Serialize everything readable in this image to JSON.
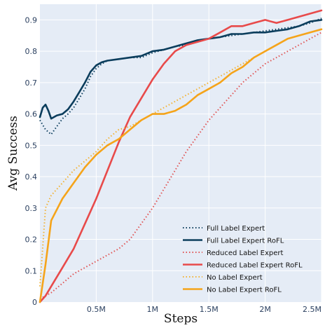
{
  "chart_data": {
    "type": "line",
    "xlabel": "Steps",
    "ylabel": "Avg Success",
    "xlim": [
      0,
      2500000
    ],
    "ylim": [
      0,
      0.95
    ],
    "grid": true,
    "legend_position": "bottom-right",
    "x_ticks": [
      {
        "value": 500000,
        "label": "0.5M"
      },
      {
        "value": 1000000,
        "label": "1M"
      },
      {
        "value": 1500000,
        "label": "1.5M"
      },
      {
        "value": 2000000,
        "label": "2M"
      },
      {
        "value": 2500000,
        "label": "2.5M"
      }
    ],
    "y_ticks": [
      {
        "value": 0,
        "label": "0"
      },
      {
        "value": 0.1,
        "label": "0.1"
      },
      {
        "value": 0.2,
        "label": "0.2"
      },
      {
        "value": 0.3,
        "label": "0.3"
      },
      {
        "value": 0.4,
        "label": "0.4"
      },
      {
        "value": 0.5,
        "label": "0.5"
      },
      {
        "value": 0.6,
        "label": "0.6"
      },
      {
        "value": 0.7,
        "label": "0.7"
      },
      {
        "value": 0.8,
        "label": "0.8"
      },
      {
        "value": 0.9,
        "label": "0.9"
      }
    ],
    "series": [
      {
        "name": "Full Label Expert",
        "color": "#0b3d5c",
        "dash": "dotted",
        "x": [
          0,
          50000,
          100000,
          150000,
          200000,
          250000,
          300000,
          350000,
          400000,
          450000,
          500000,
          550000,
          600000,
          700000,
          800000,
          900000,
          1000000,
          1100000,
          1200000,
          1300000,
          1400000,
          1500000,
          1600000,
          1700000,
          1800000,
          1900000,
          2000000,
          2100000,
          2200000,
          2300000,
          2400000,
          2500000
        ],
        "y": [
          0.58,
          0.55,
          0.535,
          0.56,
          0.585,
          0.6,
          0.62,
          0.65,
          0.68,
          0.72,
          0.745,
          0.76,
          0.77,
          0.775,
          0.78,
          0.78,
          0.795,
          0.805,
          0.815,
          0.82,
          0.83,
          0.84,
          0.845,
          0.85,
          0.855,
          0.86,
          0.865,
          0.87,
          0.875,
          0.88,
          0.89,
          0.905
        ]
      },
      {
        "name": "Full Label Expert RoFL",
        "color": "#0b3d5c",
        "dash": "solid",
        "x": [
          0,
          25000,
          50000,
          75000,
          100000,
          150000,
          200000,
          250000,
          300000,
          350000,
          400000,
          450000,
          500000,
          550000,
          600000,
          700000,
          800000,
          900000,
          1000000,
          1100000,
          1200000,
          1300000,
          1400000,
          1500000,
          1600000,
          1700000,
          1800000,
          1900000,
          2000000,
          2100000,
          2200000,
          2300000,
          2400000,
          2500000
        ],
        "y": [
          0.59,
          0.62,
          0.63,
          0.61,
          0.585,
          0.595,
          0.6,
          0.615,
          0.64,
          0.67,
          0.7,
          0.735,
          0.755,
          0.765,
          0.77,
          0.775,
          0.78,
          0.785,
          0.8,
          0.805,
          0.815,
          0.825,
          0.835,
          0.84,
          0.845,
          0.855,
          0.855,
          0.86,
          0.86,
          0.865,
          0.87,
          0.88,
          0.895,
          0.9
        ]
      },
      {
        "name": "Reduced Label Expert",
        "color": "#e05555",
        "dash": "dotted",
        "x": [
          0,
          50000,
          100000,
          200000,
          300000,
          400000,
          500000,
          600000,
          700000,
          800000,
          900000,
          1000000,
          1100000,
          1200000,
          1300000,
          1400000,
          1500000,
          1600000,
          1700000,
          1800000,
          1900000,
          2000000,
          2100000,
          2200000,
          2300000,
          2400000,
          2500000
        ],
        "y": [
          0.01,
          0.02,
          0.03,
          0.06,
          0.09,
          0.11,
          0.13,
          0.15,
          0.17,
          0.2,
          0.25,
          0.3,
          0.36,
          0.42,
          0.48,
          0.53,
          0.58,
          0.62,
          0.66,
          0.7,
          0.73,
          0.76,
          0.78,
          0.8,
          0.82,
          0.84,
          0.86
        ]
      },
      {
        "name": "Reduced Label Expert RoFL",
        "color": "#e84a4a",
        "dash": "solid",
        "x": [
          0,
          50000,
          100000,
          200000,
          300000,
          400000,
          500000,
          600000,
          700000,
          800000,
          900000,
          1000000,
          1100000,
          1200000,
          1300000,
          1400000,
          1500000,
          1600000,
          1700000,
          1800000,
          1900000,
          2000000,
          2100000,
          2200000,
          2300000,
          2400000,
          2500000
        ],
        "y": [
          0.0,
          0.02,
          0.05,
          0.11,
          0.17,
          0.25,
          0.33,
          0.42,
          0.51,
          0.59,
          0.65,
          0.71,
          0.76,
          0.8,
          0.82,
          0.83,
          0.84,
          0.86,
          0.88,
          0.88,
          0.89,
          0.9,
          0.89,
          0.9,
          0.91,
          0.92,
          0.93
        ]
      },
      {
        "name": "No Label Expert",
        "color": "#f2b233",
        "dash": "dotted",
        "x": [
          0,
          50000,
          100000,
          200000,
          300000,
          400000,
          500000,
          600000,
          700000,
          800000,
          900000,
          1000000,
          1100000,
          1200000,
          1300000,
          1400000,
          1500000,
          1600000,
          1700000,
          1800000,
          1900000,
          2000000,
          2100000,
          2200000,
          2300000,
          2400000,
          2500000
        ],
        "y": [
          0.05,
          0.3,
          0.34,
          0.38,
          0.42,
          0.45,
          0.48,
          0.52,
          0.55,
          0.56,
          0.58,
          0.6,
          0.62,
          0.64,
          0.66,
          0.68,
          0.7,
          0.72,
          0.74,
          0.76,
          0.78,
          0.8,
          0.82,
          0.84,
          0.85,
          0.86,
          0.87
        ]
      },
      {
        "name": "No Label Expert RoFL",
        "color": "#f5a41a",
        "dash": "solid",
        "x": [
          0,
          50000,
          100000,
          200000,
          300000,
          400000,
          500000,
          600000,
          700000,
          800000,
          900000,
          1000000,
          1100000,
          1200000,
          1300000,
          1400000,
          1500000,
          1600000,
          1700000,
          1800000,
          1900000,
          2000000,
          2100000,
          2200000,
          2300000,
          2400000,
          2500000
        ],
        "y": [
          0.0,
          0.12,
          0.26,
          0.33,
          0.38,
          0.43,
          0.47,
          0.5,
          0.52,
          0.55,
          0.58,
          0.6,
          0.6,
          0.61,
          0.63,
          0.66,
          0.68,
          0.7,
          0.73,
          0.75,
          0.78,
          0.8,
          0.82,
          0.84,
          0.85,
          0.86,
          0.87
        ]
      }
    ]
  }
}
